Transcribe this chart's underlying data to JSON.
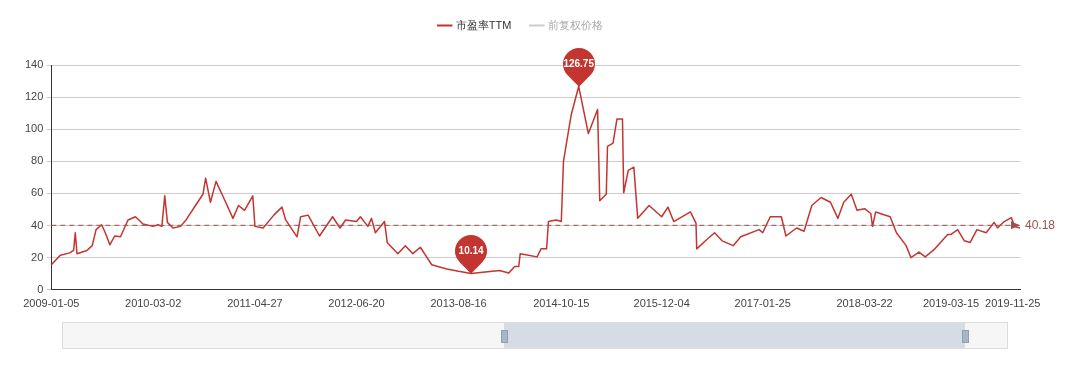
{
  "chart_data": {
    "type": "line",
    "x": [
      "2009-01-05",
      "2009-02-11",
      "2009-03-22",
      "2009-04-07",
      "2009-04-14",
      "2009-04-21",
      "2009-06-01",
      "2009-06-23",
      "2009-07-09",
      "2009-08-01",
      "2009-08-16",
      "2009-09-04",
      "2009-09-24",
      "2009-10-18",
      "2009-11-18",
      "2009-12-19",
      "2010-01-19",
      "2010-03-02",
      "2010-03-22",
      "2010-04-07",
      "2010-04-19",
      "2010-04-30",
      "2010-05-23",
      "2010-06-23",
      "2010-07-16",
      "2010-08-24",
      "2010-09-24",
      "2010-10-05",
      "2010-10-25",
      "2010-11-17",
      "2010-12-18",
      "2011-01-26",
      "2011-02-18",
      "2011-03-15",
      "2011-04-18",
      "2011-04-27",
      "2011-05-31",
      "2011-07-14",
      "2011-08-17",
      "2011-09-01",
      "2011-10-18",
      "2011-11-02",
      "2011-12-03",
      "2012-01-19",
      "2012-03-13",
      "2012-04-13",
      "2012-05-06",
      "2012-06-20",
      "2012-07-06",
      "2012-08-06",
      "2012-08-21",
      "2012-09-06",
      "2012-10-14",
      "2012-10-25",
      "2012-12-08",
      "2013-01-08",
      "2013-02-08",
      "2013-03-11",
      "2013-04-27",
      "2013-06-28",
      "2013-08-16",
      "2013-10-07",
      "2014-02-01",
      "2014-03-12",
      "2014-04-05",
      "2014-04-22",
      "2014-04-28",
      "2014-07-07",
      "2014-07-23",
      "2014-08-15",
      "2014-08-23",
      "2014-09-24",
      "2014-10-15",
      "2014-10-24",
      "2014-11-15",
      "2014-11-25",
      "2014-12-26",
      "2015-01-19",
      "2015-02-04",
      "2015-03-14",
      "2015-03-23",
      "2015-04-19",
      "2015-04-24",
      "2015-05-17",
      "2015-06-02",
      "2015-06-25",
      "2015-06-30",
      "2015-07-19",
      "2015-08-11",
      "2015-08-27",
      "2015-10-13",
      "2015-12-04",
      "2015-12-30",
      "2016-01-23",
      "2016-04-01",
      "2016-04-24",
      "2016-04-27",
      "2016-06-09",
      "2016-07-10",
      "2016-08-10",
      "2016-09-25",
      "2016-10-26",
      "2017-01-10",
      "2017-01-25",
      "2017-02-25",
      "2017-04-12",
      "2017-05-01",
      "2017-06-14",
      "2017-07-15",
      "2017-08-16",
      "2017-09-23",
      "2017-11-01",
      "2017-12-02",
      "2017-12-26",
      "2018-01-26",
      "2018-02-19",
      "2018-03-22",
      "2018-04-17",
      "2018-04-24",
      "2018-05-07",
      "2018-07-06",
      "2018-08-01",
      "2018-09-10",
      "2018-09-30",
      "2018-11-02",
      "2018-11-28",
      "2019-01-07",
      "2019-03-01",
      "2019-03-15",
      "2019-04-11",
      "2019-05-09",
      "2019-06-02",
      "2019-06-30",
      "2019-08-07",
      "2019-09-09",
      "2019-09-23",
      "2019-10-21",
      "2019-11-19",
      "2019-12-02",
      "2019-12-25"
    ],
    "series": [
      {
        "name": "市盈率TTM",
        "color": "#c23531",
        "values": [
          15.6,
          21.5,
          23,
          24.5,
          35.5,
          22.5,
          24.5,
          27.5,
          37.5,
          40.5,
          35.5,
          28,
          33.5,
          33,
          43.5,
          45.5,
          41,
          39.5,
          40.5,
          39.5,
          58.5,
          42,
          38.5,
          39.5,
          43.5,
          52.5,
          59.5,
          69.5,
          54.5,
          67.5,
          57.5,
          44.5,
          52.5,
          49.5,
          58.5,
          39.5,
          38.5,
          46.5,
          51.5,
          43.5,
          33,
          45.5,
          46.5,
          33.5,
          45.5,
          38.5,
          43.5,
          42.5,
          45.5,
          39.5,
          44.5,
          35.5,
          42.5,
          29.5,
          22.5,
          27.5,
          22.5,
          26.5,
          15.6,
          13,
          11.5,
          10.14,
          12,
          10.5,
          14.5,
          14.5,
          22.5,
          20.5,
          25.5,
          25.5,
          42.5,
          43.5,
          42.5,
          80,
          100,
          109,
          126.75,
          109,
          97.3,
          112.3,
          55.5,
          59.5,
          89.3,
          91.3,
          106.3,
          106.3,
          60.4,
          74.4,
          76.4,
          44.5,
          52.5,
          45.5,
          51.5,
          42.5,
          48.5,
          41.5,
          25.5,
          31.5,
          35.5,
          30.5,
          27.5,
          33,
          37.5,
          35.5,
          45.5,
          45.5,
          33.5,
          38.5,
          36.5,
          52.5,
          57.5,
          54.5,
          44.5,
          54.5,
          59.5,
          49.5,
          50.5,
          47.5,
          39.5,
          48.5,
          45.5,
          35.5,
          27.5,
          20,
          23.5,
          20.5,
          25.5,
          34.5,
          34.5,
          37.5,
          30.5,
          29.5,
          37.5,
          35.5,
          42,
          38.5,
          42.5,
          45,
          39.5,
          38.5
        ]
      },
      {
        "name": "前复权价格",
        "color": "#cccccc",
        "values": [
          null,
          null,
          null,
          null,
          null,
          null,
          null,
          null,
          null,
          null,
          null,
          null,
          null,
          null,
          null,
          null,
          null,
          null,
          null,
          null,
          null,
          null,
          null,
          null,
          null,
          null,
          null,
          null,
          null,
          null,
          null,
          null,
          null,
          null,
          null,
          null,
          null,
          null,
          null,
          null,
          null,
          null,
          null,
          null,
          null,
          null,
          null,
          null,
          null,
          null,
          null,
          null,
          null,
          null,
          null,
          null,
          null,
          null,
          null,
          null,
          null,
          null,
          null,
          null,
          null,
          null,
          null,
          null,
          null,
          null,
          null,
          null,
          null,
          null,
          null,
          null,
          null,
          null,
          null,
          null,
          null,
          null,
          null,
          null,
          null,
          null,
          null,
          null,
          null,
          null,
          null,
          null,
          null,
          null,
          null,
          null,
          null,
          null,
          null,
          null,
          null,
          null,
          null,
          null,
          null,
          null,
          null,
          null,
          null,
          null,
          null,
          null,
          null,
          null,
          null,
          null,
          null,
          null,
          null,
          null,
          null,
          null,
          null,
          null,
          null,
          null,
          null,
          null,
          null,
          null,
          null,
          null,
          null,
          null,
          null,
          null,
          null,
          null,
          null,
          null
        ]
      }
    ],
    "xlim": [
      "2009-01-05",
      "2019-12-25"
    ],
    "xticks": [
      "2009-01-05",
      "2010-03-02",
      "2011-04-27",
      "2012-06-20",
      "2013-08-16",
      "2014-10-15",
      "2015-12-04",
      "2017-01-25",
      "2018-03-22",
      "2019-03-15",
      "2019-11-25"
    ],
    "ylim": [
      0,
      140
    ],
    "yticks": [
      0,
      20,
      40,
      60,
      80,
      100,
      120,
      140
    ],
    "ref_lines": [
      {
        "axis": "y",
        "value": 40.18,
        "label": "40.18",
        "color": "#a0504c",
        "line_style": "dashed"
      }
    ],
    "annotations": [
      {
        "text": "10.14",
        "x": "2013-10-07",
        "y": 10.14
      },
      {
        "text": "126.75",
        "x": "2014-12-26",
        "y": 126.75
      }
    ],
    "grid": "y",
    "legend": "top",
    "marker": "none"
  }
}
